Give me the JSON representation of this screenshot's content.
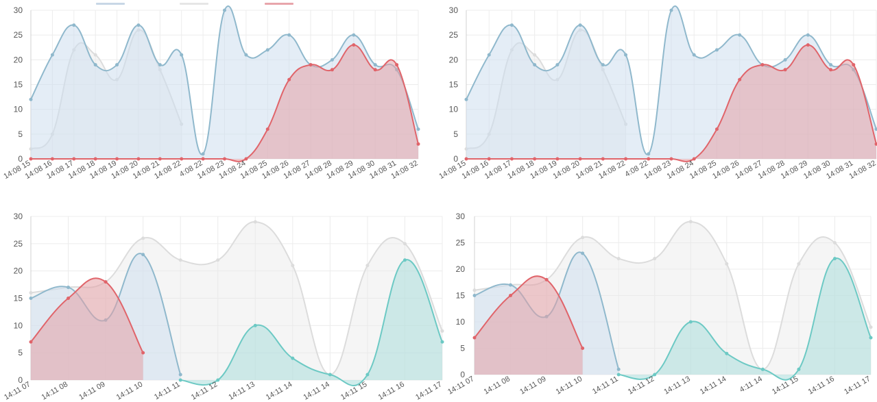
{
  "colors": {
    "blue": "#8fb8cc",
    "blue_fill": "rgba(206,222,238,0.55)",
    "gray": "#dcdcdc",
    "gray_fill": "rgba(232,232,232,0.45)",
    "red": "#e0646a",
    "red_fill": "rgba(228,160,165,0.55)",
    "teal": "#6cc9c4",
    "teal_fill": "rgba(170,220,218,0.55)",
    "grid": "#ececec",
    "axis": "#d0d0d0",
    "tick_text": "#555555"
  },
  "chart_data": [
    {
      "type": "area",
      "ylim": [
        0,
        30
      ],
      "yticks": [
        "0",
        "5",
        "10",
        "15",
        "20",
        "25",
        "30"
      ],
      "categories": [
        "14:08 15",
        "14:08 16",
        "14:08 17",
        "14:08 18",
        "14:08 19",
        "14:08 20",
        "14:08 21",
        "14:08 22",
        "4:08 22",
        "14:08 23",
        "14:08 24",
        "14:08 25",
        "14:08 26",
        "14:08 27",
        "14:08 28",
        "14:08 29",
        "14:08 30",
        "14:08 31",
        "14:08 32"
      ],
      "series": [
        {
          "color": "gray",
          "values": [
            2,
            5,
            22,
            21,
            16,
            26,
            18,
            7,
            null,
            null,
            null,
            null,
            null,
            null,
            null,
            null,
            null,
            null,
            null
          ]
        },
        {
          "color": "blue",
          "values": [
            12,
            21,
            27,
            19,
            19,
            27,
            19,
            21,
            1,
            30,
            21,
            22,
            25,
            19,
            20,
            25,
            19,
            18,
            6
          ]
        },
        {
          "color": "red",
          "values": [
            0,
            0,
            0,
            0,
            0,
            0,
            0,
            0,
            0,
            0,
            0,
            6,
            16,
            19,
            18,
            23,
            18,
            19,
            3
          ]
        }
      ]
    },
    {
      "type": "area",
      "ylim": [
        0,
        30
      ],
      "yticks": [
        "0",
        "5",
        "10",
        "15",
        "20",
        "25",
        "30"
      ],
      "categories": [
        "14:08 15",
        "14:08 16",
        "14:08 17",
        "14:08 18",
        "14:08 19",
        "14:08 20",
        "14:08 21",
        "14:08 22",
        "4:08 22",
        "14:08 23",
        "14:08 24",
        "14:08 25",
        "14:08 26",
        "14:08 27",
        "14:08 28",
        "14:08 29",
        "14:08 30",
        "14:08 31",
        "14:08 32"
      ],
      "series": [
        {
          "color": "gray",
          "values": [
            2,
            5,
            22,
            21,
            16,
            26,
            18,
            7,
            null,
            null,
            null,
            null,
            null,
            null,
            null,
            null,
            null,
            null,
            null
          ]
        },
        {
          "color": "blue",
          "values": [
            12,
            21,
            27,
            19,
            19,
            27,
            19,
            21,
            1,
            30,
            21,
            22,
            25,
            19,
            20,
            25,
            19,
            18,
            6
          ]
        },
        {
          "color": "red",
          "values": [
            0,
            0,
            0,
            0,
            0,
            0,
            0,
            0,
            0,
            0,
            0,
            6,
            16,
            19,
            18,
            23,
            18,
            19,
            3
          ]
        }
      ]
    },
    {
      "type": "area",
      "ylim": [
        0,
        30
      ],
      "yticks": [
        "0",
        "5",
        "10",
        "15",
        "20",
        "25",
        "30"
      ],
      "categories": [
        "14:11 07",
        "14:11 08",
        "14:11 09",
        "14:11 10",
        "14:11 11",
        "14:11 12",
        "14:11 13",
        "14:11 14",
        "14:11 14",
        "14:11 15",
        "14:11 16",
        "14:11 17"
      ],
      "series": [
        {
          "color": "gray",
          "values": [
            16,
            17,
            18,
            26,
            22,
            22,
            29,
            21,
            1,
            21,
            25,
            9
          ]
        },
        {
          "color": "blue",
          "values": [
            15,
            17,
            11,
            23,
            1,
            null,
            null,
            null,
            null,
            null,
            null,
            null
          ]
        },
        {
          "color": "red",
          "values": [
            7,
            15,
            18,
            5,
            null,
            null,
            null,
            null,
            null,
            null,
            null,
            null
          ]
        },
        {
          "color": "teal",
          "values": [
            null,
            null,
            null,
            null,
            0,
            0,
            10,
            4,
            1,
            1,
            22,
            7
          ]
        }
      ]
    },
    {
      "type": "area",
      "ylim": [
        0,
        30
      ],
      "yticks": [
        "0",
        "5",
        "10",
        "15",
        "20",
        "25",
        "30"
      ],
      "categories": [
        "14:11 07",
        "14:11 08",
        "14:11 09",
        "14:11 10",
        "14:11 11",
        "14:11 12",
        "14:11 13",
        "14:11 14",
        "4:11 14",
        "14:11 15",
        "14:11 16",
        "14:11 17"
      ],
      "series": [
        {
          "color": "gray",
          "values": [
            16,
            17,
            18,
            26,
            22,
            22,
            29,
            21,
            1,
            21,
            25,
            9
          ]
        },
        {
          "color": "blue",
          "values": [
            15,
            17,
            11,
            23,
            1,
            null,
            null,
            null,
            null,
            null,
            null,
            null
          ]
        },
        {
          "color": "red",
          "values": [
            7,
            15,
            18,
            5,
            null,
            null,
            null,
            null,
            null,
            null,
            null,
            null
          ]
        },
        {
          "color": "teal",
          "values": [
            null,
            null,
            null,
            null,
            0,
            0,
            10,
            4,
            1,
            1,
            22,
            7
          ]
        }
      ]
    }
  ]
}
